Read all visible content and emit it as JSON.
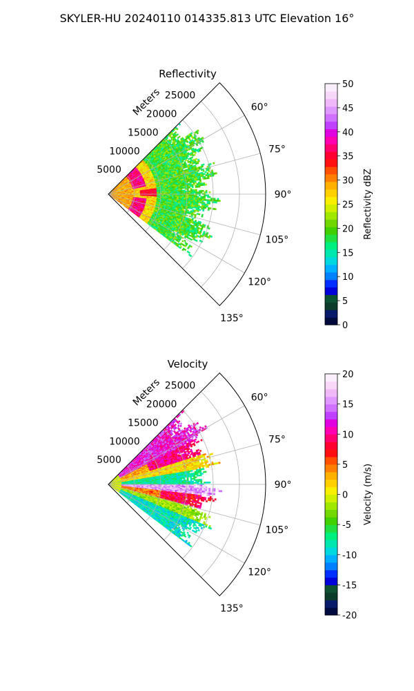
{
  "figure": {
    "title": "SKYLER-HU  20240110  014335.813 UTC Elevation 16°"
  },
  "chart_data": [
    {
      "type": "polar-sector",
      "title": "Reflectivity",
      "range_axis_label": "Meters",
      "range_ticks": [
        "5000",
        "10000",
        "15000",
        "20000",
        "25000"
      ],
      "range_tick_values": [
        5000,
        10000,
        15000,
        20000,
        25000
      ],
      "range_max": 30000,
      "azimuth_range_deg": [
        45,
        135
      ],
      "azimuth_ticks": [
        "60°",
        "75°",
        "90°",
        "105°",
        "120°",
        "135°"
      ],
      "azimuth_tick_values": [
        60,
        75,
        90,
        105,
        120,
        135
      ],
      "grid": true,
      "data_extent_m": 20000,
      "colorbar": {
        "label": "Reflectivity dBZ",
        "ticks": [
          "0",
          "5",
          "10",
          "15",
          "20",
          "25",
          "30",
          "35",
          "40",
          "45",
          "50"
        ],
        "range": [
          0,
          50
        ],
        "colors": [
          "#000a3c",
          "#081a6a",
          "#0b3b2a",
          "#0b5233",
          "#0000d8",
          "#0030ff",
          "#0080ff",
          "#00b0ff",
          "#00d8e0",
          "#00e8b0",
          "#00f080",
          "#20e040",
          "#40d000",
          "#70d800",
          "#a0e800",
          "#d0f000",
          "#f8f000",
          "#ffd000",
          "#ffb000",
          "#ff8000",
          "#ff5000",
          "#ff1010",
          "#ff0030",
          "#ff0070",
          "#ff00b0",
          "#e000e0",
          "#c040ff",
          "#d070ff",
          "#e098ff",
          "#f0b8f8",
          "#f8d8f8",
          "#fbeefb"
        ]
      },
      "field_description": "green 15-22 dBZ outer region, yellow 25-30 dBZ mid, red/magenta 35-40 dBZ ring near 5000-7000 m"
    },
    {
      "type": "polar-sector",
      "title": "Velocity",
      "range_axis_label": "Meters",
      "range_ticks": [
        "5000",
        "10000",
        "15000",
        "20000",
        "25000"
      ],
      "range_tick_values": [
        5000,
        10000,
        15000,
        20000,
        25000
      ],
      "range_max": 30000,
      "azimuth_range_deg": [
        45,
        135
      ],
      "azimuth_ticks": [
        "60°",
        "75°",
        "90°",
        "105°",
        "120°",
        "135°"
      ],
      "azimuth_tick_values": [
        60,
        75,
        90,
        105,
        120,
        135
      ],
      "grid": true,
      "data_extent_m": 20000,
      "colorbar": {
        "label": "Velocity (m/s)",
        "ticks": [
          "-20",
          "-15",
          "-10",
          "-5",
          "0",
          "5",
          "10",
          "15",
          "20"
        ],
        "range": [
          -20,
          20
        ],
        "colors": [
          "#000a3c",
          "#081a6a",
          "#0b3b2a",
          "#0b5233",
          "#0000d8",
          "#0030ff",
          "#0080ff",
          "#00b0ff",
          "#00d8e0",
          "#00e8b0",
          "#00f080",
          "#20e040",
          "#40d000",
          "#70d800",
          "#a0e800",
          "#d0f000",
          "#f8f000",
          "#ffd000",
          "#ffb000",
          "#ff8000",
          "#ff5000",
          "#ff1010",
          "#ff0030",
          "#ff0070",
          "#ff00b0",
          "#e000e0",
          "#c040ff",
          "#d070ff",
          "#e098ff",
          "#f0b8f8",
          "#f8d8f8",
          "#fbeefb"
        ]
      },
      "field_description": "positive (orange/red/magenta) velocities toward 60-75° at long range and 95-105°; negative (green/cyan) near 80-90° and 105-120°"
    }
  ]
}
